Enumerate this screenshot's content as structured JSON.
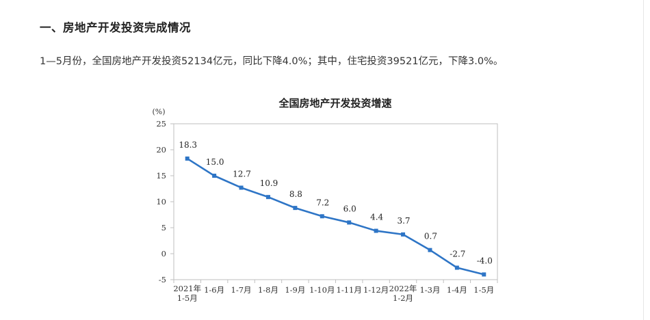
{
  "section": {
    "heading": "一、房地产开发投资完成情况",
    "paragraph": "1—5月份，全国房地产开发投资52134亿元，同比下降4.0%；其中，住宅投资39521亿元，下降3.0%。"
  },
  "chart_data": {
    "type": "line",
    "title": "全国房地产开发投资增速",
    "ylabel": "(%)",
    "xlabel": "",
    "ylim": [
      -5,
      25
    ],
    "yticks": [
      -5,
      0,
      5,
      10,
      15,
      20,
      25
    ],
    "categories": [
      [
        "2021年",
        "1-5月"
      ],
      [
        "1-6月"
      ],
      [
        "1-7月"
      ],
      [
        "1-8月"
      ],
      [
        "1-9月"
      ],
      [
        "1-10月"
      ],
      [
        "1-11月"
      ],
      [
        "1-12月"
      ],
      [
        "2022年",
        "1-2月"
      ],
      [
        "1-3月"
      ],
      [
        "1-4月"
      ],
      [
        "1-5月"
      ]
    ],
    "values": [
      18.3,
      15.0,
      12.7,
      10.9,
      8.8,
      7.2,
      6.0,
      4.4,
      3.7,
      0.7,
      -2.7,
      -4.0
    ],
    "data_labels": [
      "18.3",
      "15.0",
      "12.7",
      "10.9",
      "8.8",
      "7.2",
      "6.0",
      "4.4",
      "3.7",
      "0.7",
      "-2.7",
      "-4.0"
    ],
    "grid": false,
    "line_color": "#2e75c6"
  }
}
